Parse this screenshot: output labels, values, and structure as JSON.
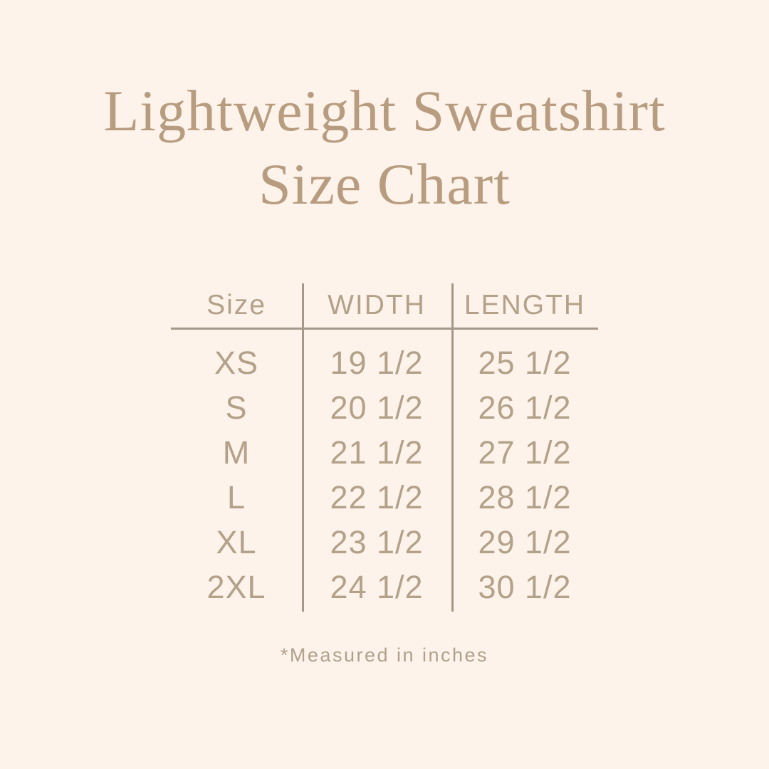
{
  "page": {
    "background_color": "#fdf3ea"
  },
  "title": {
    "line1": "Lightweight Sweatshirt",
    "line2": "Size Chart",
    "color": "#b89c80"
  },
  "table": {
    "columns": [
      "Size",
      "WIDTH",
      "LENGTH"
    ],
    "rows": [
      {
        "size": "XS",
        "width": "19 1/2",
        "length": "25 1/2"
      },
      {
        "size": "S",
        "width": "20 1/2",
        "length": "26 1/2"
      },
      {
        "size": "M",
        "width": "21 1/2",
        "length": "27 1/2"
      },
      {
        "size": "L",
        "width": "22 1/2",
        "length": "28 1/2"
      },
      {
        "size": "XL",
        "width": "23 1/2",
        "length": "29 1/2"
      },
      {
        "size": "2XL",
        "width": "24 1/2",
        "length": "30 1/2"
      }
    ],
    "text_color": "#b3a189",
    "line_color": "#a5988a"
  },
  "footnote": {
    "text": "*Measured in inches",
    "color": "#b1a18c"
  },
  "chart_data": {
    "type": "table",
    "title": "Lightweight Sweatshirt Size Chart",
    "columns": [
      "Size",
      "WIDTH",
      "LENGTH"
    ],
    "rows": [
      [
        "XS",
        "19 1/2",
        "25 1/2"
      ],
      [
        "S",
        "20 1/2",
        "26 1/2"
      ],
      [
        "M",
        "21 1/2",
        "27 1/2"
      ],
      [
        "L",
        "22 1/2",
        "28 1/2"
      ],
      [
        "XL",
        "23 1/2",
        "29 1/2"
      ],
      [
        "2XL",
        "24 1/2",
        "30 1/2"
      ]
    ],
    "units": "inches",
    "footnote": "*Measured in inches"
  }
}
